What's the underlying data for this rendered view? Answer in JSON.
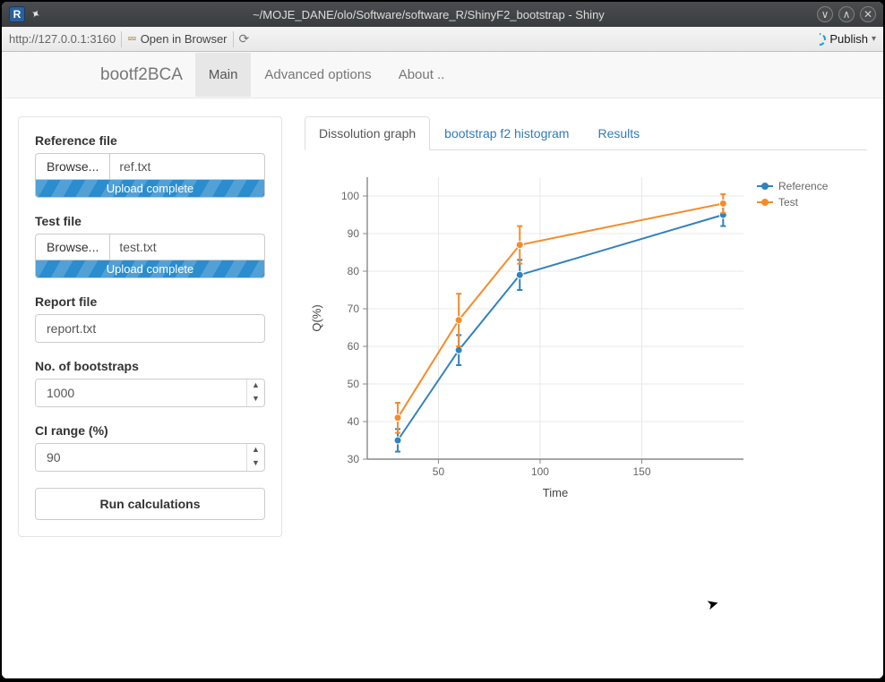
{
  "window": {
    "title": "~/MOJE_DANE/olo/Software/software_R/ShinyF2_bootstrap - Shiny"
  },
  "addressbar": {
    "url": "http://127.0.0.1:3160",
    "open_browser": "Open in Browser",
    "publish": "Publish"
  },
  "nav": {
    "brand": "bootf2BCA",
    "items": [
      "Main",
      "Advanced options",
      "About .."
    ],
    "active": 0
  },
  "sidebar": {
    "ref_label": "Reference file",
    "ref_browse": "Browse...",
    "ref_file": "ref.txt",
    "ref_status": "Upload complete",
    "test_label": "Test file",
    "test_browse": "Browse...",
    "test_file": "test.txt",
    "test_status": "Upload complete",
    "report_label": "Report file",
    "report_value": "report.txt",
    "boot_label": "No. of bootstraps",
    "boot_value": "1000",
    "ci_label": "CI range (%)",
    "ci_value": "90",
    "run_label": "Run calculations"
  },
  "tabs": {
    "items": [
      "Dissolution graph",
      "bootstrap f2 histogram",
      "Results"
    ],
    "active": 0
  },
  "chart": {
    "type": "line-errorbar",
    "xlabel": "Time",
    "ylabel": "Q(%)",
    "xlim": [
      15,
      200
    ],
    "ylim": [
      30,
      105
    ],
    "xticks": [
      50,
      100,
      150
    ],
    "yticks": [
      30,
      40,
      50,
      60,
      70,
      80,
      90,
      100
    ],
    "legend": [
      "Reference",
      "Test"
    ],
    "background_color": "#ffffff",
    "grid_color": "#e8e8e8",
    "axis_color": "#888888",
    "text_color": "#666666",
    "marker": "circle",
    "marker_size": 4,
    "line_width": 2,
    "errorbar_cap": 6,
    "series": {
      "reference": {
        "color": "#3182bd",
        "x": [
          30,
          60,
          90,
          190
        ],
        "y": [
          35,
          59,
          79,
          95
        ],
        "err": [
          3,
          4,
          4,
          3
        ]
      },
      "test": {
        "color": "#f48c2a",
        "x": [
          30,
          60,
          90,
          190
        ],
        "y": [
          41,
          67,
          87,
          98
        ],
        "err": [
          4,
          7,
          5,
          2.5
        ]
      }
    }
  }
}
